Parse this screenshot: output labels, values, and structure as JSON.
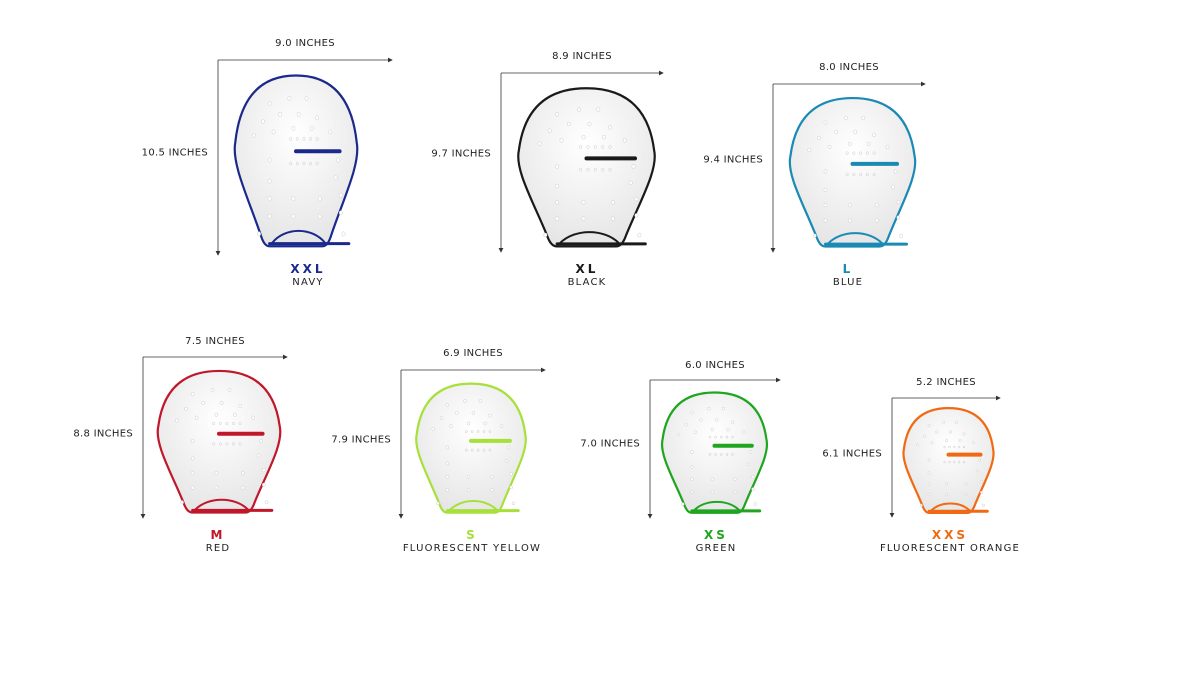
{
  "unit": "INCHES",
  "paddles": [
    {
      "size": "XXL",
      "color_name": "NAVY",
      "color": "#1a2a8c",
      "width": "9.0 INCHES",
      "height": "10.5 INCHES"
    },
    {
      "size": "XL",
      "color_name": "BLACK",
      "color": "#1a1a1a",
      "width": "8.9 INCHES",
      "height": "9.7 INCHES"
    },
    {
      "size": "L",
      "color_name": "BLUE",
      "color": "#1a8ab5",
      "width": "8.0 INCHES",
      "height": "9.4 INCHES"
    },
    {
      "size": "M",
      "color_name": "RED",
      "color": "#c0172b",
      "width": "7.5 INCHES",
      "height": "8.8 INCHES"
    },
    {
      "size": "S",
      "color_name": "FLUORESCENT YELLOW",
      "color": "#a8e03a",
      "width": "6.9 INCHES",
      "height": "7.9 INCHES"
    },
    {
      "size": "XS",
      "color_name": "GREEN",
      "color": "#1fa51f",
      "width": "6.0 INCHES",
      "height": "7.0 INCHES"
    },
    {
      "size": "XXS",
      "color_name": "FLUORESCENT ORANGE",
      "color": "#f06a14",
      "width": "5.2 INCHES",
      "height": "6.1 INCHES"
    }
  ]
}
